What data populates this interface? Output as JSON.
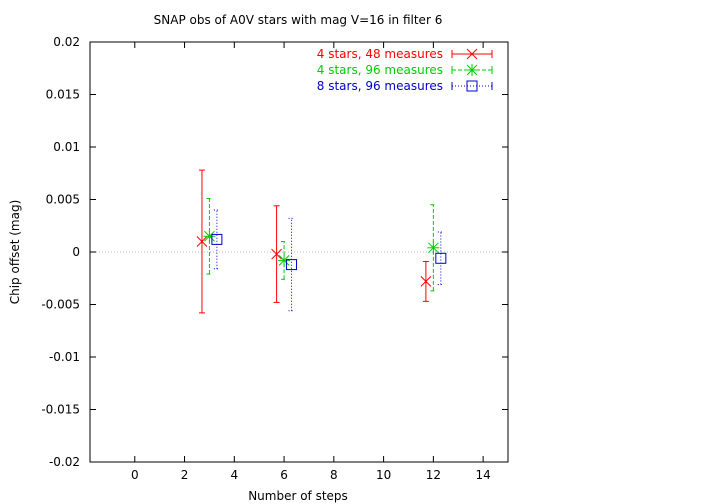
{
  "chart_data": {
    "type": "scatter",
    "title": "SNAP obs of A0V stars with mag V=16 in filter 6",
    "xlabel": "Number of steps",
    "ylabel": "Chip offset (mag)",
    "xlim": [
      -1.8,
      15
    ],
    "ylim": [
      -0.02,
      0.02
    ],
    "xticks": [
      0,
      2,
      4,
      6,
      8,
      10,
      12,
      14
    ],
    "xtick_labels": [
      "0",
      "2",
      "4",
      "6",
      "8",
      "10",
      "12",
      "14"
    ],
    "yticks": [
      -0.02,
      -0.015,
      -0.01,
      -0.005,
      0,
      0.005,
      0.01,
      0.015,
      0.02
    ],
    "ytick_labels": [
      "-0.02",
      "-0.015",
      "-0.01",
      "-0.005",
      "0",
      "0.005",
      "0.01",
      "0.015",
      "0.02"
    ],
    "reference_line_y": 0,
    "legend_position": "top-right",
    "series": [
      {
        "name": "4 stars, 48 measures",
        "color": "#ff0000",
        "marker": "x",
        "line_style": "solid",
        "points": [
          {
            "x": 2.7,
            "y": 0.001,
            "ylow": -0.0058,
            "yhigh": 0.0078
          },
          {
            "x": 5.7,
            "y": -0.0002,
            "ylow": -0.0048,
            "yhigh": 0.0044
          },
          {
            "x": 11.7,
            "y": -0.0028,
            "ylow": -0.0047,
            "yhigh": -0.0009
          }
        ]
      },
      {
        "name": "4 stars, 96 measures",
        "color": "#00cc00",
        "marker": "star",
        "line_style": "dashed",
        "points": [
          {
            "x": 3.0,
            "y": 0.0015,
            "ylow": -0.0021,
            "yhigh": 0.0051
          },
          {
            "x": 6.0,
            "y": -0.0008,
            "ylow": -0.0026,
            "yhigh": 0.001
          },
          {
            "x": 12.0,
            "y": 0.0004,
            "ylow": -0.0037,
            "yhigh": 0.0045
          }
        ]
      },
      {
        "name": "8 stars, 96 measures",
        "color": "#0000cc",
        "marker": "square",
        "line_style": "dotted",
        "points": [
          {
            "x": 3.3,
            "y": 0.0012,
            "ylow": -0.0016,
            "yhigh": 0.004
          },
          {
            "x": 6.3,
            "y": -0.0012,
            "ylow": -0.0056,
            "yhigh": 0.0032
          },
          {
            "x": 12.3,
            "y": -0.0006,
            "ylow": -0.0031,
            "yhigh": 0.0019
          }
        ]
      }
    ]
  }
}
